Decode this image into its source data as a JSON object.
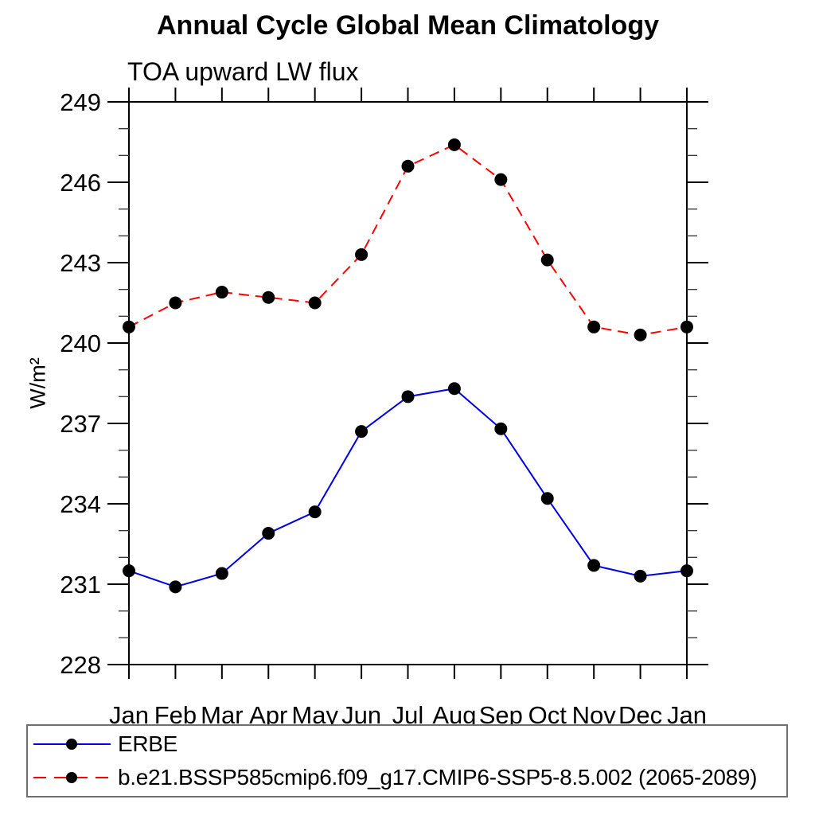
{
  "header": {
    "title": "Annual Cycle Global Mean Climatology",
    "subtitle": "TOA upward LW flux"
  },
  "colors": {
    "erbe_blue": "#0000e0",
    "model_red": "#ff0000",
    "marker": "#000000",
    "axis": "#000000",
    "legend_border": "#6f6f6f"
  },
  "legend": {
    "items": [
      {
        "label": "ERBE",
        "style": "solid",
        "color": "#0000e0"
      },
      {
        "label": "b.e21.BSSP585cmip6.f09_g17.CMIP6-SSP5-8.5.002 (2065-2089)",
        "style": "dashed",
        "color": "#ff0000"
      }
    ]
  },
  "chart_data": {
    "type": "line",
    "title": "Annual Cycle Global Mean Climatology",
    "subtitle": "TOA upward LW flux",
    "ylabel": "W/m²",
    "xlabel": "",
    "categories": [
      "Jan",
      "Feb",
      "Mar",
      "Apr",
      "May",
      "Jun",
      "Jul",
      "Aug",
      "Sep",
      "Oct",
      "Nov",
      "Dec",
      "Jan"
    ],
    "series": [
      {
        "name": "ERBE",
        "color": "#0000e0",
        "style": "solid",
        "marker": "filled-circle",
        "values": [
          231.5,
          230.9,
          231.4,
          232.9,
          233.7,
          236.7,
          238.0,
          238.3,
          236.8,
          234.2,
          231.7,
          231.3,
          231.5
        ]
      },
      {
        "name": "b.e21.BSSP585cmip6.f09_g17.CMIP6-SSP5-8.5.002 (2065-2089)",
        "color": "#ff0000",
        "style": "dashed",
        "marker": "filled-circle",
        "values": [
          240.6,
          241.5,
          241.9,
          241.7,
          241.5,
          243.3,
          246.6,
          247.4,
          246.1,
          243.1,
          240.6,
          240.3,
          240.6
        ]
      }
    ],
    "ylim": [
      228,
      249
    ],
    "y_major_ticks": [
      228,
      231,
      234,
      237,
      240,
      243,
      246,
      249
    ],
    "y_minor_step": 1,
    "grid": false,
    "legend_position": "bottom"
  }
}
